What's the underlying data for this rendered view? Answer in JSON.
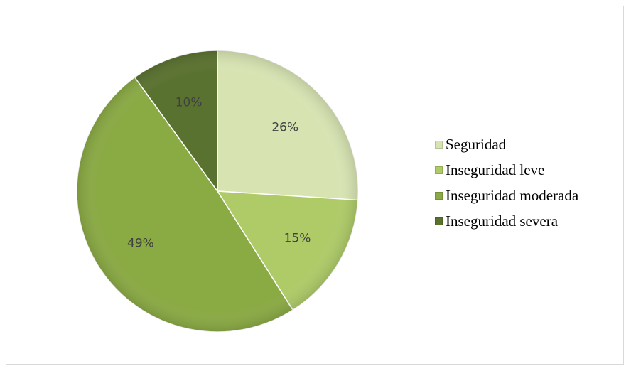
{
  "chart_data": {
    "type": "pie",
    "title": "",
    "slices": [
      {
        "label": "Seguridad",
        "value": 26,
        "display": "26%",
        "color": "#d7e4b2"
      },
      {
        "label": "Inseguridad leve",
        "value": 15,
        "display": "15%",
        "color": "#aecb68"
      },
      {
        "label": "Inseguridad moderada",
        "value": 49,
        "display": "49%",
        "color": "#8aaa44"
      },
      {
        "label": "Inseguridad severa",
        "value": 10,
        "display": "10%",
        "color": "#5a7230"
      }
    ],
    "start_angle": "12 o'clock",
    "direction": "clockwise",
    "legend_position": "right",
    "data_labels": "percent inside slices"
  }
}
